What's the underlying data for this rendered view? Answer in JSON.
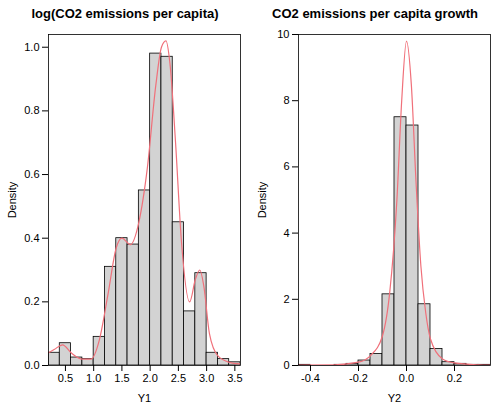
{
  "chart_data": [
    {
      "type": "histogram",
      "title": "log(CO2 emissions per capita)",
      "x_label": "Y1",
      "y_label": "Density",
      "bins": [
        0.2,
        0.4,
        0.6,
        0.8,
        1.0,
        1.2,
        1.4,
        1.6,
        1.8,
        2.0,
        2.2,
        2.4,
        2.6,
        2.8,
        3.0,
        3.2,
        3.4,
        3.6
      ],
      "values": [
        0.04,
        0.07,
        0.025,
        0.02,
        0.09,
        0.31,
        0.4,
        0.38,
        0.55,
        0.98,
        0.97,
        0.45,
        0.17,
        0.29,
        0.04,
        0.02,
        0.01
      ],
      "color": "#d3d3d3",
      "xlim": [
        0.2,
        3.6
      ],
      "ylim": [
        0,
        1.04
      ],
      "xticks": [
        0.5,
        {
          "value": 1,
          "label": "1.0"
        },
        1.5,
        {
          "value": 2,
          "label": "2.0"
        },
        2.5,
        {
          "value": 3,
          "label": "3.0"
        },
        3.5
      ],
      "yticks": [
        {
          "value": 0,
          "label": "0.0"
        },
        0.2,
        0.4,
        0.6,
        0.8,
        {
          "value": 1,
          "label": "1.0"
        }
      ],
      "series": [
        {
          "type": "line",
          "color": "#f0707a",
          "x": [
            0.2,
            0.3,
            0.45,
            0.6,
            0.8,
            0.95,
            1.1,
            1.25,
            1.4,
            1.5,
            1.65,
            1.8,
            1.95,
            2.1,
            2.2,
            2.28,
            2.35,
            2.45,
            2.55,
            2.7,
            2.8,
            2.88,
            2.95,
            3.05,
            3.2,
            3.4,
            3.6
          ],
          "values": [
            0.04,
            0.05,
            0.065,
            0.04,
            0.02,
            0.02,
            0.08,
            0.22,
            0.37,
            0.4,
            0.38,
            0.45,
            0.62,
            0.88,
            1.0,
            1.02,
            0.95,
            0.7,
            0.4,
            0.2,
            0.27,
            0.3,
            0.25,
            0.1,
            0.03,
            0.01,
            0.005
          ]
        }
      ]
    },
    {
      "type": "histogram",
      "title": "CO2 emissions per capita growth",
      "x_label": "Y2",
      "y_label": "Density",
      "bins": [
        -0.45,
        -0.4,
        -0.35,
        -0.3,
        -0.25,
        -0.2,
        -0.15,
        -0.1,
        -0.05,
        0,
        0.05,
        0.1,
        0.15,
        0.2,
        0.25,
        0.3,
        0.35
      ],
      "values": [
        0.02,
        0,
        0,
        0.02,
        0.05,
        0.15,
        0.35,
        2.15,
        7.5,
        7.25,
        1.85,
        0.5,
        0.1,
        0.05,
        0.02,
        0.02
      ],
      "color": "#d3d3d3",
      "xlim": [
        -0.45,
        0.35
      ],
      "ylim": [
        0,
        10
      ],
      "xticks": [
        -0.4,
        -0.2,
        {
          "value": 0,
          "label": "0.0"
        },
        0.2
      ],
      "yticks": [
        0,
        2,
        4,
        6,
        8,
        10
      ],
      "series": [
        {
          "type": "line",
          "color": "#f0707a",
          "x": [
            -0.45,
            -0.3,
            -0.2,
            -0.15,
            -0.1,
            -0.07,
            -0.04,
            -0.02,
            0,
            0.02,
            0.04,
            0.06,
            0.08,
            0.1,
            0.15,
            0.2,
            0.3,
            0.35
          ],
          "values": [
            0.01,
            0.02,
            0.1,
            0.3,
            0.9,
            2.2,
            5.0,
            8.0,
            9.8,
            8.5,
            5.5,
            3.0,
            1.6,
            0.8,
            0.2,
            0.08,
            0.02,
            0.01
          ]
        }
      ]
    }
  ]
}
